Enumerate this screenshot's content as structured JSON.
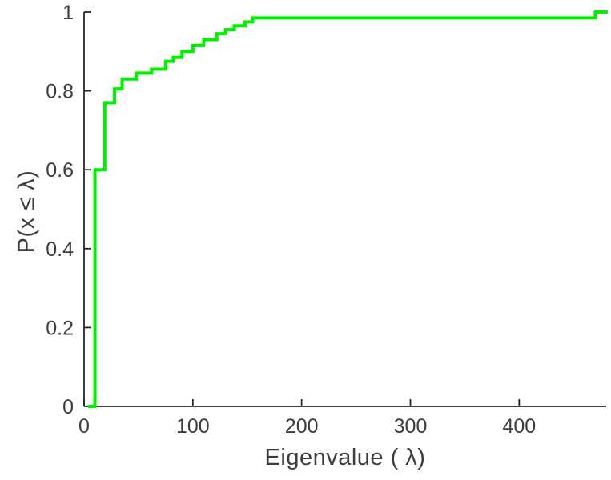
{
  "figure": {
    "background": "#ffffff"
  },
  "chart_data": {
    "type": "line",
    "subtype": "ecdf_stairs",
    "title": "",
    "xlabel": "Eigenvalue (  λ)",
    "ylabel": "P(x ≤ λ)",
    "xlim": [
      0,
      480
    ],
    "ylim": [
      0,
      1
    ],
    "x_ticks": [
      0,
      100,
      200,
      300,
      400
    ],
    "x_tick_labels": [
      "0",
      "100",
      "200",
      "300",
      "400"
    ],
    "y_ticks": [
      0,
      0.2,
      0.4,
      0.6,
      0.8,
      1
    ],
    "y_tick_labels": [
      "0",
      "0.2",
      "0.4",
      "0.6",
      "0.8",
      "1"
    ],
    "grid": false,
    "legend": null,
    "line_color": "#00f000",
    "line_width": 4,
    "axis_color": "#262626",
    "tick_label_color": "#3d3d3d",
    "tick_font_size": 25,
    "start_x": 5,
    "end_x": 480,
    "steps": [
      [
        10,
        0.6
      ],
      [
        19,
        0.77
      ],
      [
        28,
        0.805
      ],
      [
        35,
        0.83
      ],
      [
        48,
        0.845
      ],
      [
        62,
        0.855
      ],
      [
        75,
        0.875
      ],
      [
        82,
        0.885
      ],
      [
        90,
        0.9
      ],
      [
        100,
        0.915
      ],
      [
        110,
        0.93
      ],
      [
        122,
        0.945
      ],
      [
        130,
        0.955
      ],
      [
        138,
        0.965
      ],
      [
        148,
        0.975
      ],
      [
        155,
        0.985
      ],
      [
        470,
        1.0
      ]
    ]
  }
}
